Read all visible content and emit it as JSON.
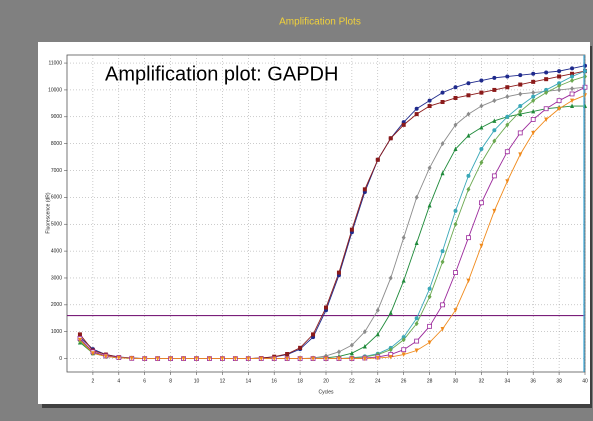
{
  "header": {
    "title": "Amplification Plots"
  },
  "chart_data": {
    "type": "line",
    "annotation": "Amplification plot: GAPDH",
    "x_label": "Cycles",
    "y_label": "Fluorescence (dR)",
    "x": [
      1,
      2,
      3,
      4,
      5,
      6,
      7,
      8,
      9,
      10,
      11,
      12,
      13,
      14,
      15,
      16,
      17,
      18,
      19,
      20,
      21,
      22,
      23,
      24,
      25,
      26,
      27,
      28,
      29,
      30,
      31,
      32,
      33,
      34,
      35,
      36,
      37,
      38,
      39,
      40
    ],
    "xlim": [
      0,
      40
    ],
    "xticks": [
      2,
      4,
      6,
      8,
      10,
      12,
      14,
      16,
      18,
      20,
      22,
      24,
      26,
      28,
      30,
      32,
      34,
      36,
      38,
      40
    ],
    "ylim": [
      -500,
      11300
    ],
    "yticks": [
      0,
      1000,
      2000,
      3000,
      4000,
      5000,
      6000,
      7000,
      8000,
      9000,
      10000,
      11000
    ],
    "grid": true,
    "threshold": 1600,
    "threshold_color": "#7a1f7a",
    "series": [
      {
        "color": "#1f2a8c",
        "marker": "circle",
        "values": [
          800,
          350,
          150,
          60,
          20,
          0,
          0,
          0,
          0,
          0,
          0,
          0,
          0,
          0,
          20,
          60,
          150,
          350,
          800,
          1800,
          3100,
          4700,
          6200,
          7400,
          8200,
          8800,
          9300,
          9600,
          9900,
          10100,
          10250,
          10350,
          10450,
          10500,
          10550,
          10600,
          10650,
          10700,
          10800,
          10900
        ]
      },
      {
        "color": "#8b1a1a",
        "marker": "square",
        "values": [
          900,
          300,
          150,
          50,
          20,
          0,
          0,
          0,
          0,
          0,
          0,
          0,
          0,
          0,
          20,
          70,
          170,
          400,
          900,
          1900,
          3200,
          4800,
          6300,
          7400,
          8200,
          8700,
          9100,
          9400,
          9550,
          9700,
          9800,
          9900,
          10000,
          10100,
          10200,
          10300,
          10400,
          10500,
          10600,
          10700
        ]
      },
      {
        "color": "#8c8c8c",
        "marker": "diamond",
        "values": [
          700,
          250,
          100,
          40,
          10,
          0,
          0,
          0,
          0,
          0,
          0,
          0,
          0,
          0,
          0,
          0,
          0,
          0,
          20,
          100,
          250,
          500,
          1000,
          1800,
          3000,
          4500,
          6000,
          7100,
          8000,
          8700,
          9100,
          9400,
          9600,
          9750,
          9850,
          9900,
          9950,
          10000,
          10050,
          10100
        ]
      },
      {
        "color": "#1f8a3a",
        "marker": "triangle",
        "values": [
          600,
          200,
          80,
          30,
          10,
          0,
          0,
          0,
          0,
          0,
          0,
          0,
          0,
          0,
          0,
          0,
          0,
          0,
          0,
          30,
          80,
          200,
          450,
          900,
          1700,
          2900,
          4300,
          5700,
          6900,
          7800,
          8300,
          8600,
          8850,
          9000,
          9100,
          9200,
          9300,
          9350,
          9400,
          9400
        ]
      },
      {
        "color": "#3aa8b8",
        "marker": "circle",
        "values": [
          700,
          250,
          90,
          30,
          10,
          0,
          0,
          0,
          0,
          0,
          0,
          0,
          0,
          0,
          0,
          0,
          0,
          0,
          0,
          0,
          0,
          30,
          80,
          180,
          400,
          800,
          1500,
          2600,
          4000,
          5500,
          6800,
          7800,
          8500,
          9000,
          9400,
          9750,
          10000,
          10250,
          10500,
          10700
        ]
      },
      {
        "color": "#6aa84f",
        "marker": "diamond",
        "values": [
          650,
          220,
          80,
          30,
          10,
          0,
          0,
          0,
          0,
          0,
          0,
          0,
          0,
          0,
          0,
          0,
          0,
          0,
          0,
          0,
          0,
          20,
          60,
          150,
          330,
          700,
          1300,
          2300,
          3600,
          5000,
          6300,
          7300,
          8100,
          8700,
          9200,
          9600,
          9900,
          10150,
          10350,
          10500
        ]
      },
      {
        "color": "#9c2a9c",
        "marker": "open-square",
        "values": [
          750,
          250,
          100,
          40,
          10,
          0,
          0,
          0,
          0,
          0,
          0,
          0,
          0,
          0,
          0,
          0,
          0,
          0,
          0,
          0,
          0,
          0,
          20,
          60,
          150,
          330,
          650,
          1200,
          2000,
          3200,
          4500,
          5800,
          6800,
          7700,
          8400,
          8900,
          9300,
          9600,
          9850,
          10100
        ]
      },
      {
        "color": "#f08a1c",
        "marker": "triangle-down",
        "values": [
          700,
          200,
          80,
          30,
          10,
          0,
          0,
          0,
          0,
          0,
          0,
          0,
          0,
          0,
          0,
          0,
          0,
          0,
          0,
          0,
          0,
          0,
          0,
          20,
          60,
          150,
          300,
          600,
          1100,
          1800,
          2900,
          4200,
          5500,
          6600,
          7600,
          8400,
          8900,
          9300,
          9600,
          9800
        ]
      }
    ]
  }
}
